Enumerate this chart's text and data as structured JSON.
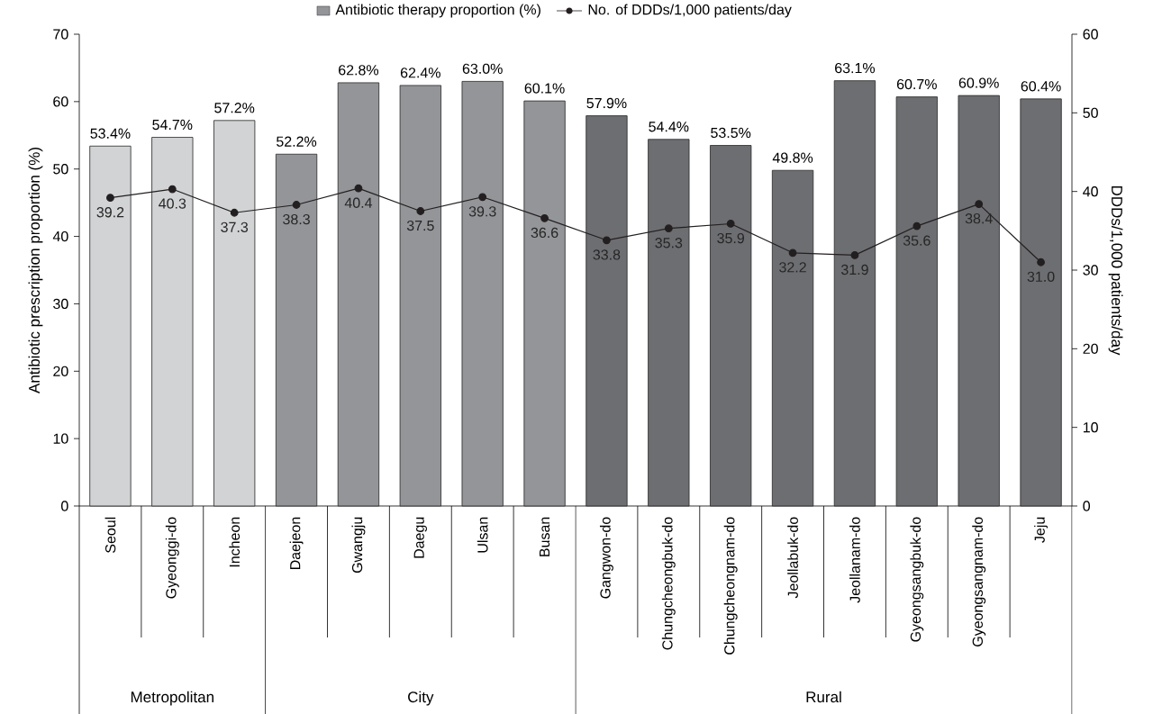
{
  "chart_data": {
    "type": "bar",
    "legend": "top",
    "ylabel": "Antibiotic prescription proportion (%)",
    "y2label": "DDDs/1,000 patients/day",
    "marker": "circle",
    "categories": [
      "Seoul",
      "Gyeonggi-do",
      "Incheon",
      "Daejeon",
      "Gwangju",
      "Daegu",
      "Ulsan",
      "Busan",
      "Gangwon-do",
      "Chungcheongbuk-do",
      "Chungcheongnam-do",
      "Jeollabuk-do",
      "Jeollanam-do",
      "Gyeongsangbuk-do",
      "Gyeongsangnam-do",
      "Jeju"
    ],
    "ylim": [
      0,
      70
    ],
    "yticks": [
      0,
      10,
      20,
      30,
      40,
      50,
      60,
      70
    ],
    "y2lim": [
      0,
      60
    ],
    "y2ticks": [
      0,
      10,
      20,
      30,
      40,
      50,
      60
    ],
    "series": [
      {
        "name": "Antibiotic therapy proportion (%)",
        "color": "#939598",
        "colors": [
          "#d1d3d4",
          "#d1d3d4",
          "#d1d3d4",
          "#939598",
          "#939598",
          "#939598",
          "#939598",
          "#939598",
          "#6d6e71",
          "#6d6e71",
          "#6d6e71",
          "#6d6e71",
          "#6d6e71",
          "#6d6e71",
          "#6d6e71",
          "#6d6e71"
        ],
        "values": [
          53.4,
          54.7,
          57.2,
          52.2,
          62.8,
          62.4,
          63.0,
          60.1,
          57.9,
          54.4,
          53.5,
          49.8,
          63.1,
          60.7,
          60.9,
          60.4
        ],
        "value_labels": [
          "53.4%",
          "54.7%",
          "57.2%",
          "52.2%",
          "62.8%",
          "62.4%",
          "63.0%",
          "60.1%",
          "57.9%",
          "54.4%",
          "53.5%",
          "49.8%",
          "63.1%",
          "60.7%",
          "60.9%",
          "60.4%"
        ]
      },
      {
        "name": "No. of DDDs/1,000 patients/day",
        "type": "line",
        "axis": "y2",
        "color": "#231f20",
        "values": [
          39.2,
          40.3,
          37.3,
          38.3,
          40.4,
          37.5,
          39.3,
          36.6,
          33.8,
          35.3,
          35.9,
          32.2,
          31.9,
          35.6,
          38.4,
          31.0
        ],
        "value_labels": [
          "39.2",
          "40.3",
          "37.3",
          "38.3",
          "40.4",
          "37.5",
          "39.3",
          "36.6",
          "33.8",
          "35.3",
          "35.9",
          "32.2",
          "31.9",
          "35.6",
          "38.4",
          "31.0"
        ]
      }
    ],
    "annotations": [
      "Metropolitan",
      "City",
      "Rural"
    ]
  }
}
